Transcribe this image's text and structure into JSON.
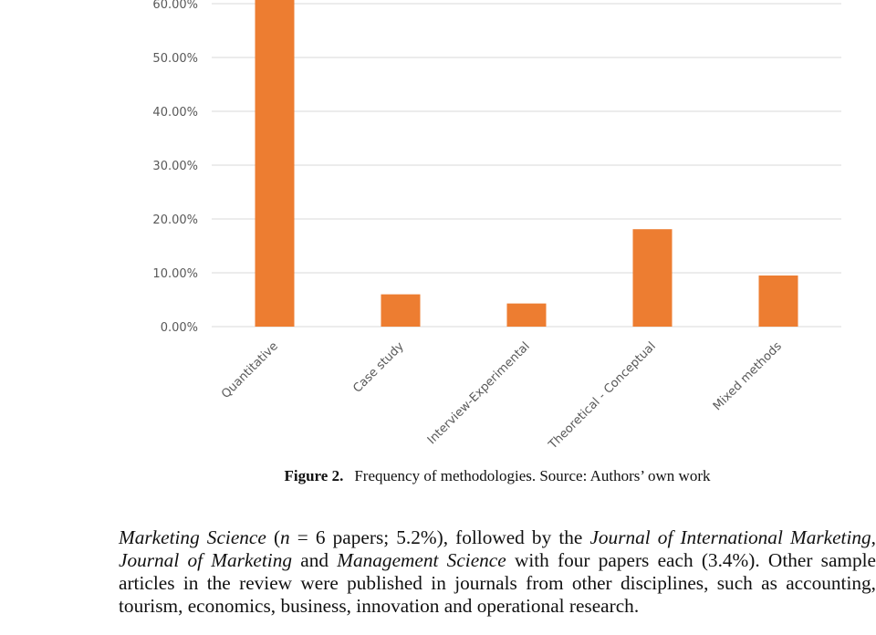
{
  "chart_data": {
    "type": "bar",
    "categories": [
      "Quantitative",
      "Case study",
      "Interview-Experimental",
      "Theoretical - Conceptual",
      "Mixed methods"
    ],
    "values": [
      62.0,
      6.0,
      4.3,
      18.1,
      9.5
    ],
    "ylim": [
      0,
      60
    ],
    "yticks": [
      "0.00%",
      "10.00%",
      "20.00%",
      "30.00%",
      "40.00%",
      "50.00%",
      "60.00%"
    ],
    "ytick_values": [
      0,
      10,
      20,
      30,
      40,
      50,
      60
    ],
    "bar_color": "#ED7D31",
    "grid_color": "#D9D9D9",
    "grid": true
  },
  "caption": {
    "label": "Figure 2.",
    "text": "Frequency of methodologies. Source: Authors’ own work"
  },
  "paragraph": {
    "j1": "Marketing Science",
    "t1": " (",
    "n": "n",
    "t2": " = 6 papers; 5.2%), followed by the ",
    "j2": "Journal of International Marketing",
    "t3": ",",
    "j3": "Journal of Marketing",
    "t4": " and ",
    "j4": "Management Science",
    "t5": " with four papers each (3.4%). Other sample",
    "line3": "articles in the review were published in journals from other disciplines, such as accounting,",
    "line4": "tourism, economics, business, innovation and operational research."
  }
}
